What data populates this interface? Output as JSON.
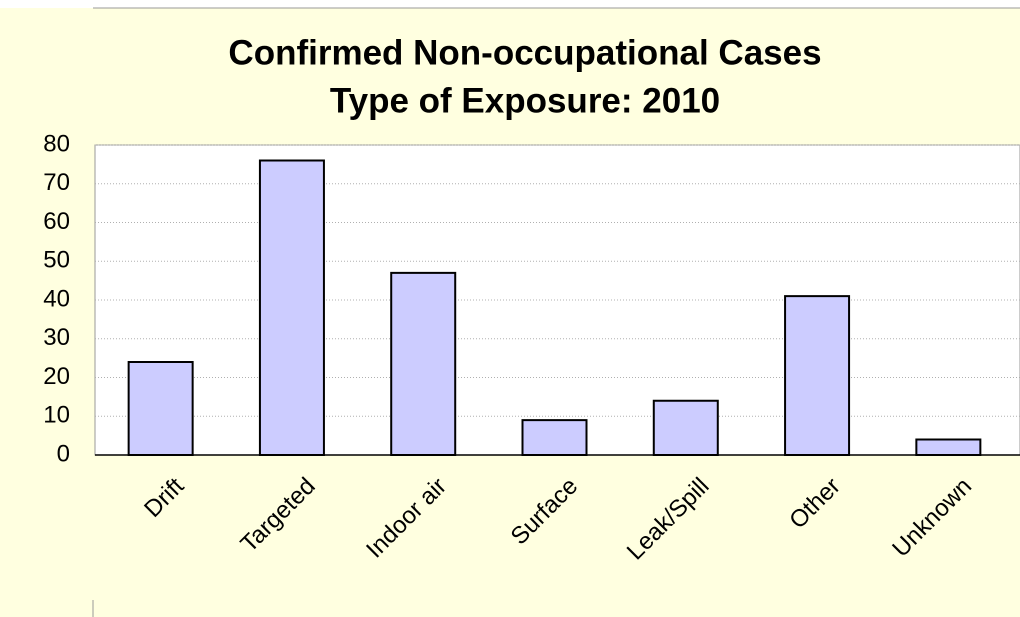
{
  "chart_data": {
    "type": "bar",
    "title": "Confirmed Non-occupational Cases",
    "subtitle": "Type of Exposure: 2010",
    "categories": [
      "Drift",
      "Targeted",
      "Indoor air",
      "Surface",
      "Leak/Spill",
      "Other",
      "Unknown"
    ],
    "values": [
      24,
      76,
      47,
      9,
      14,
      41,
      4
    ],
    "color": "#ccccff",
    "ylim": [
      0,
      80
    ],
    "yticks": [
      0,
      10,
      20,
      30,
      40,
      50,
      60,
      70,
      80
    ],
    "grid": true
  }
}
